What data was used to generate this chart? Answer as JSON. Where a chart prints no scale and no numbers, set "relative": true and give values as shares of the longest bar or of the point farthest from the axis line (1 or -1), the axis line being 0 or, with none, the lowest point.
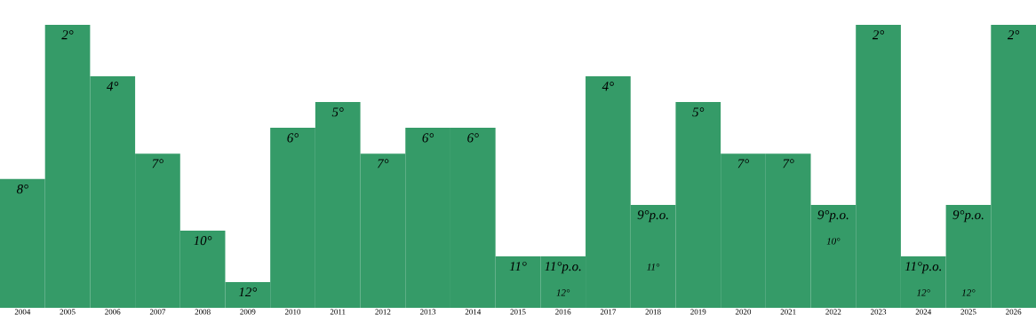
{
  "chart_data": {
    "type": "bar",
    "relative": true,
    "color": "#359b68",
    "categories": [
      "2004",
      "2005",
      "2006",
      "2007",
      "2008",
      "2009",
      "2010",
      "2011",
      "2012",
      "2013",
      "2014",
      "2015",
      "2016",
      "2017",
      "2018",
      "2019",
      "2020",
      "2021",
      "2022",
      "2023",
      "2024",
      "2025",
      "2026"
    ],
    "values": [
      0.455,
      1,
      0.818,
      0.545,
      0.273,
      0.091,
      0.636,
      0.727,
      0.545,
      0.636,
      0.636,
      0.182,
      0.182,
      0.818,
      0.364,
      0.727,
      0.545,
      0.545,
      0.364,
      1,
      0.182,
      0.364,
      1
    ],
    "annotations": [
      "8°",
      "2°",
      "4°",
      "7°",
      "10°",
      "12°",
      "6°",
      "5°",
      "7°",
      "6°",
      "6°",
      "11°",
      "11°p.o.",
      "4°",
      "9°p.o.",
      "5°",
      "7°",
      "7°",
      "9°p.o.",
      "2°",
      "11°p.o.",
      "9°p.o.",
      "2°",
      "12°",
      "11°",
      "10°",
      "12°",
      "12°"
    ]
  }
}
